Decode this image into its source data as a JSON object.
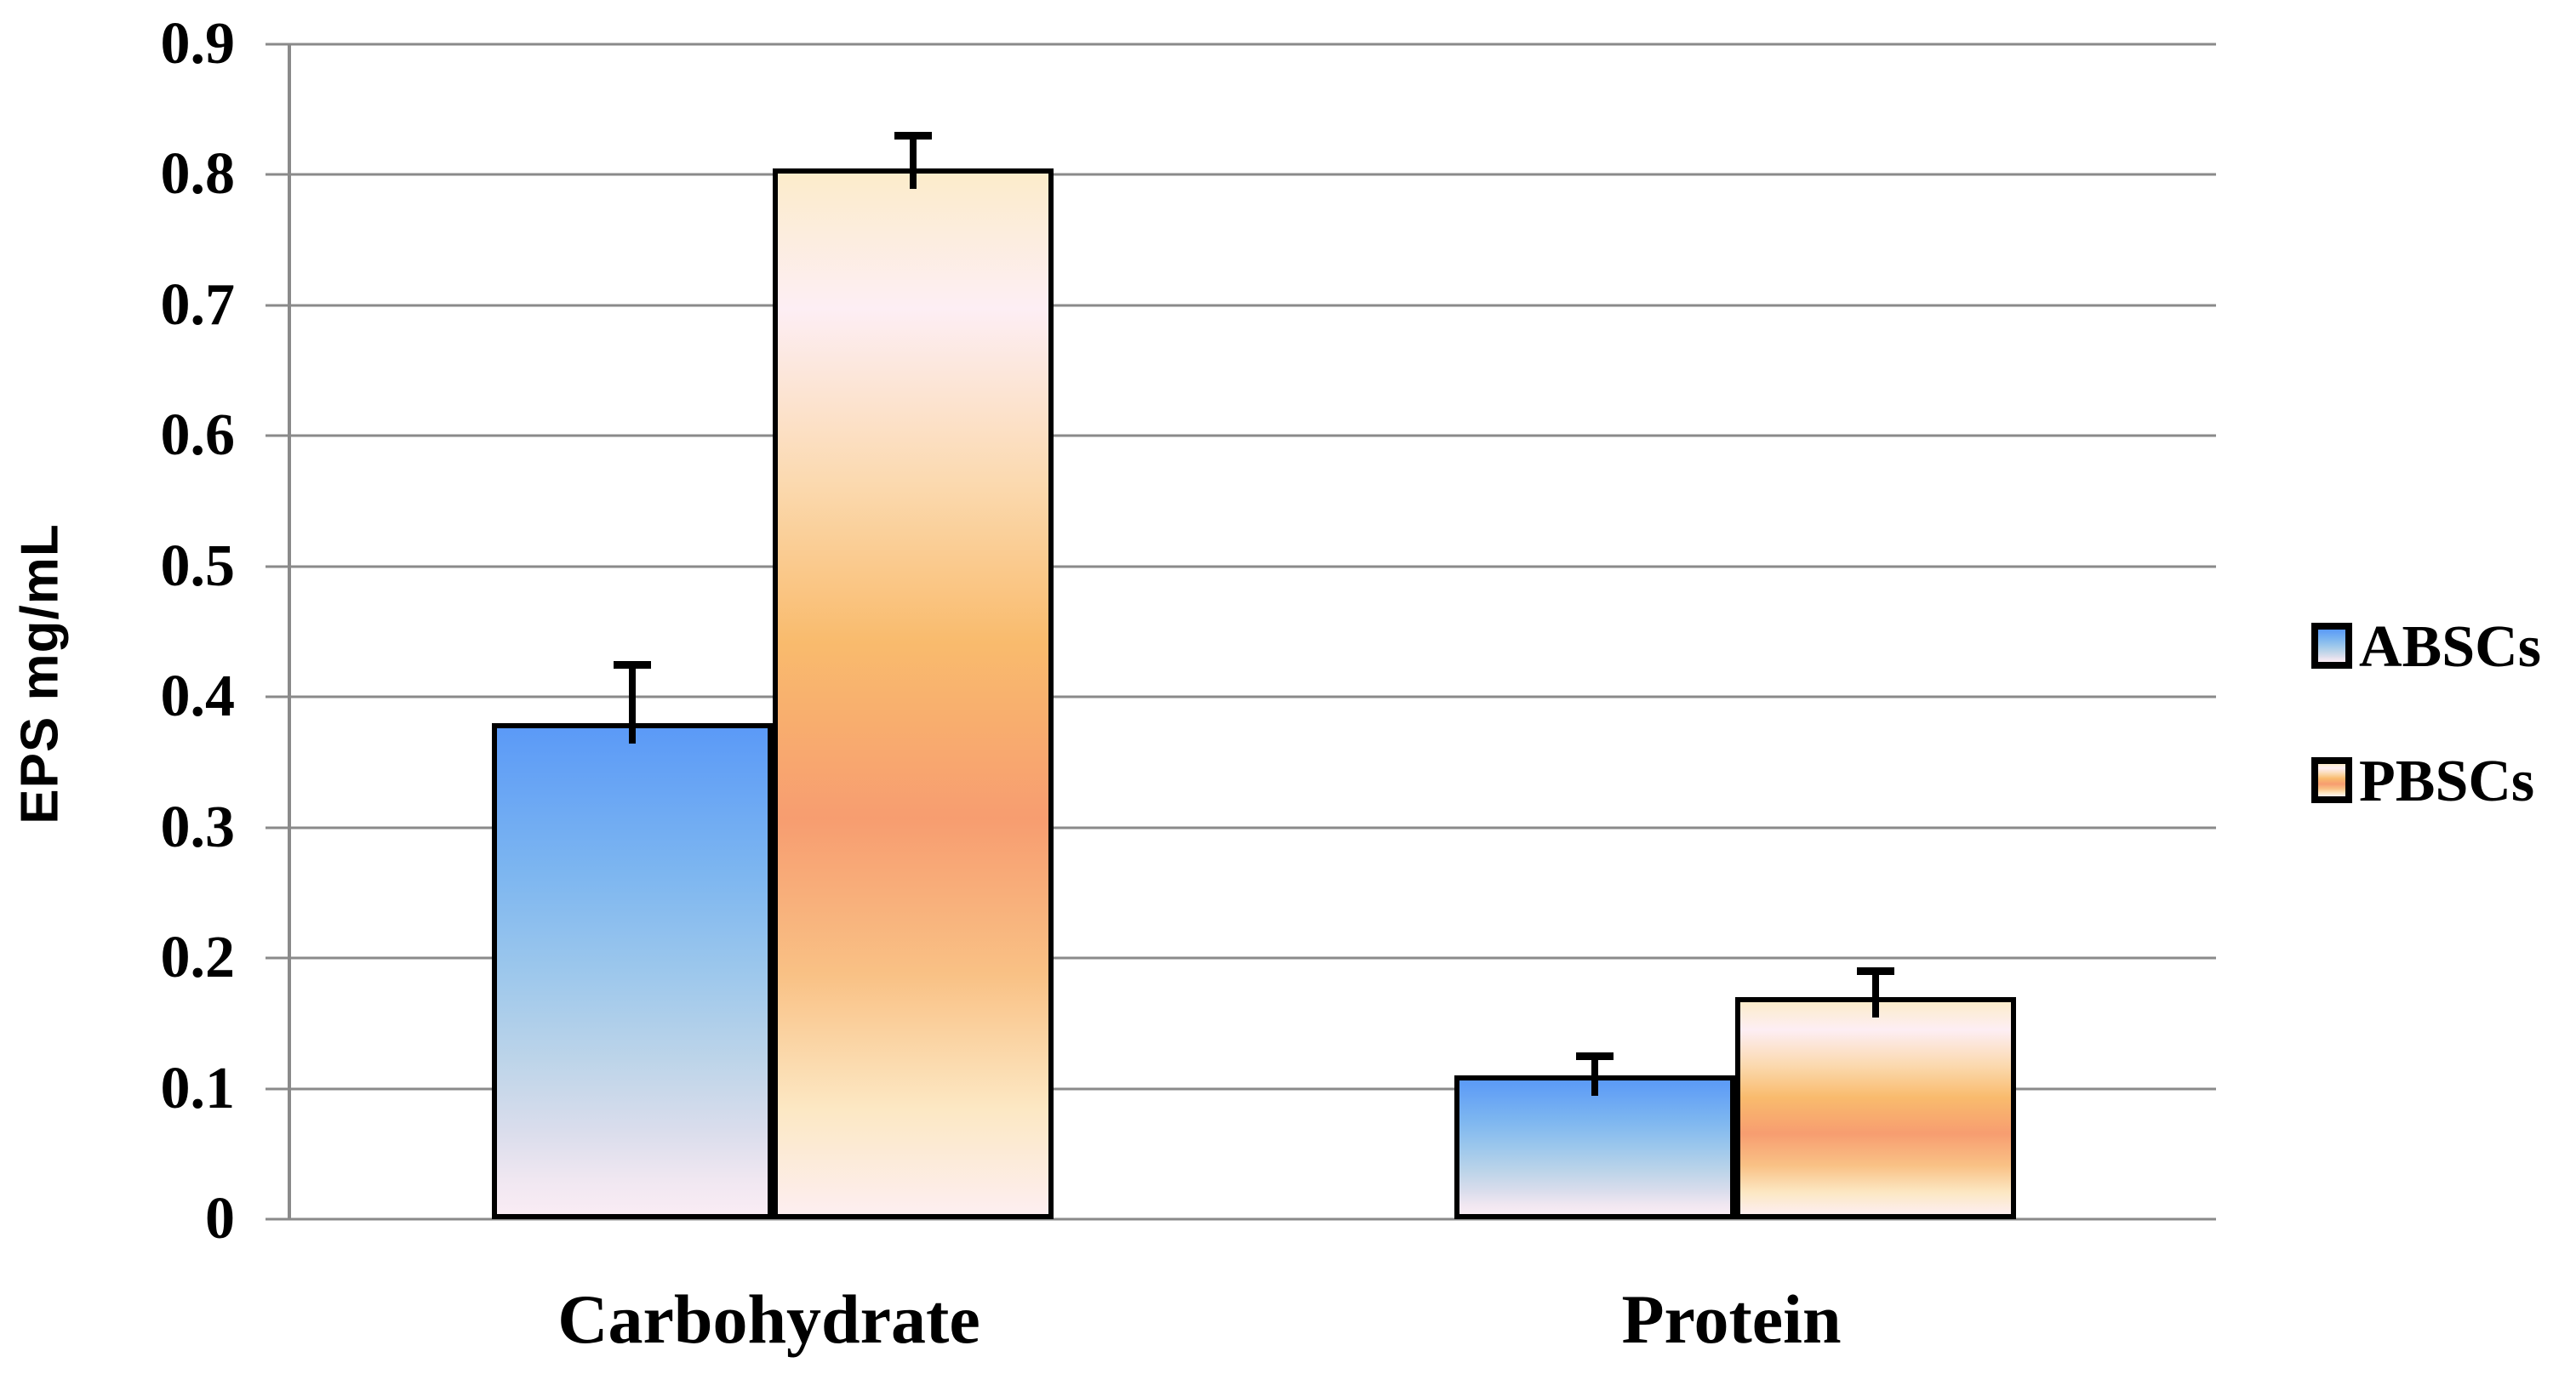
{
  "chart_data": {
    "type": "bar",
    "title": "",
    "xlabel": "",
    "ylabel": "EPS mg/mL",
    "categories": [
      "Carbohydrate",
      "Protein"
    ],
    "series": [
      {
        "name": "ABSCs",
        "values": [
          0.38,
          0.11
        ],
        "errors_plus": [
          0.045,
          0.015
        ],
        "gradient": [
          "#5b9af7 0%",
          "#7db6f0 30%",
          "#9cc7ec 50%",
          "#bcd4e9 68%",
          "#daddec 83%",
          "#f0e7f1 93%",
          "#f9ecf4 100%"
        ]
      },
      {
        "name": "PBSCs",
        "values": [
          0.805,
          0.17
        ],
        "errors_plus": [
          0.025,
          0.02
        ],
        "gradient": [
          "#fceccb 0%",
          "#fdeef4 13%",
          "#fbd9ae 30%",
          "#f9bb6d 45%",
          "#f79d70 62%",
          "#f9c185 77%",
          "#fce8c4 90%",
          "#fdeef0 100%"
        ]
      }
    ],
    "ylim": [
      0,
      0.9
    ],
    "yticks": [
      0,
      0.1,
      0.2,
      0.3,
      0.4,
      0.5,
      0.6,
      0.7,
      0.8,
      0.9
    ],
    "ytick_labels": [
      "0",
      "0.1",
      "0.2",
      "0.3",
      "0.4",
      "0.5",
      "0.6",
      "0.7",
      "0.8",
      "0.9"
    ],
    "grid": "horizontal",
    "error_bars": "upper-only",
    "legend_position": "right-middle"
  },
  "colors": {
    "background": "#ffffff",
    "gridline": "#8a8a8a",
    "axis_line": "#8a8a8a",
    "bar_border": "#000000",
    "error_bar": "#000000",
    "text": "#000000",
    "absc_main": "#5b9af7",
    "pbsc_main": "#f79d70"
  }
}
